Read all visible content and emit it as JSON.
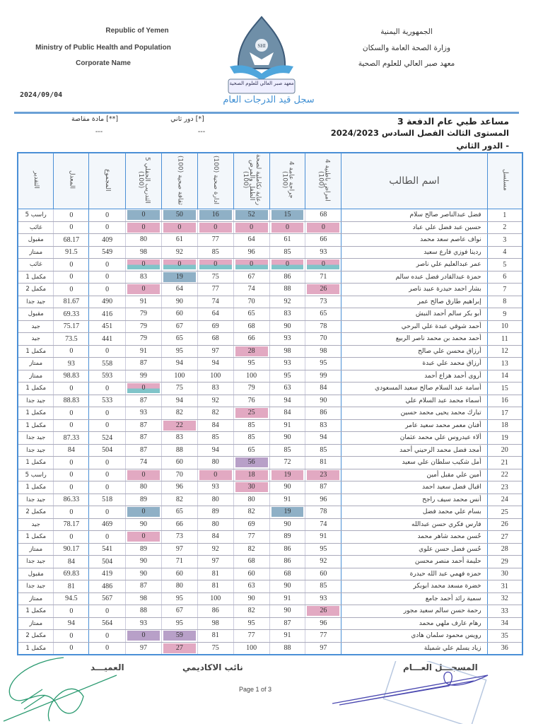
{
  "header": {
    "en": [
      "Republic of Yemen",
      "Ministry of Public Health and Population",
      "Corporate Name"
    ],
    "ar": [
      "الجمهورية اليمنية",
      "وزارة الصحة العامة والسكان",
      "معهد صبر العالي للعلوم الصحية"
    ],
    "logo_text": "SHI",
    "logo_caption": "معهد صبر العالي للعلوم الصحية",
    "date": "2024/09/04",
    "title": "سجل قيد الدرجات العام"
  },
  "program": {
    "name": "مساعد طبي عام الدفعة 3",
    "level": "المستوى الثالث  الفصل السادس  2024/2023",
    "round": "-  الدور الثاني",
    "legend": [
      {
        "key": "[*] دور ثاني",
        "val": "---"
      },
      {
        "key": "[**] مادة مقاصة",
        "val": "---"
      }
    ]
  },
  "columns": {
    "grade": "التقدير",
    "avg": "المعدل",
    "total": "المجموع",
    "subjects": [
      "التدريب الحقلي 5 (100)",
      "ثقافة صحية (100)",
      "ادارة صحية (100)",
      "رعاية تكاملية لصحة الطفل والمرض (100)",
      "جراحة عامة 4 (100)",
      "امراض باطنية 4 (100)"
    ],
    "name": "اسم الطالب",
    "serial": "مسلسل"
  },
  "highlight_colors": {
    "p": "#e2a9c2",
    "b": "#8fb0c6",
    "m": "#80c4c9",
    "u": "#b8a0c8"
  },
  "rows": [
    {
      "n": "1",
      "name": "فضل عبدالناصر صالح سلام",
      "s": [
        "0",
        "50",
        "16",
        "52",
        "15",
        "68"
      ],
      "h": "bbbbb-",
      "t": "0",
      "a": "0",
      "g": "راسب 5"
    },
    {
      "n": "2",
      "name": "حسين عبد فضل علي عباد",
      "s": [
        "0",
        "0",
        "0",
        "0",
        "0",
        "0"
      ],
      "h": "pppppp",
      "t": "0",
      "a": "0",
      "g": "غائب"
    },
    {
      "n": "3",
      "name": "نواف عاصم سعد محمد",
      "s": [
        "80",
        "61",
        "77",
        "64",
        "61",
        "66"
      ],
      "h": "------",
      "t": "409",
      "a": "68.17",
      "g": "مقبول"
    },
    {
      "n": "4",
      "name": "ردينا فوزي فارع سعيد",
      "s": [
        "98",
        "92",
        "85",
        "96",
        "85",
        "93"
      ],
      "h": "------",
      "t": "549",
      "a": "91.5",
      "g": "ممتاز"
    },
    {
      "n": "5",
      "name": "عمر عبدالعليم علي ناصر",
      "s": [
        "0",
        "0",
        "0",
        "0",
        "0",
        "0"
      ],
      "h": "mmmmmm",
      "t": "0",
      "a": "0",
      "g": "غائب"
    },
    {
      "n": "6",
      "name": "حمزة عبدالقادر فضل عبده سالم",
      "s": [
        "83",
        "19",
        "75",
        "67",
        "86",
        "71"
      ],
      "h": "-b----",
      "t": "0",
      "a": "0",
      "g": "مكمل 1"
    },
    {
      "n": "7",
      "name": "بشار احمد حيدرة عبيد ناصر",
      "s": [
        "0",
        "64",
        "77",
        "74",
        "88",
        "26"
      ],
      "h": "p----p",
      "t": "0",
      "a": "0",
      "g": "مكمل 2"
    },
    {
      "n": "8",
      "name": "إبراهيم طارق صالح عمر",
      "s": [
        "91",
        "90",
        "74",
        "70",
        "92",
        "73"
      ],
      "h": "------",
      "t": "490",
      "a": "81.67",
      "g": "جيد جدا"
    },
    {
      "n": "9",
      "name": "أبو بكر سالم أحمد النبش",
      "s": [
        "79",
        "60",
        "64",
        "65",
        "83",
        "65"
      ],
      "h": "------",
      "t": "416",
      "a": "69.33",
      "g": "مقبول"
    },
    {
      "n": "10",
      "name": "أحمد شوقي عبدة علي البرحي",
      "s": [
        "79",
        "67",
        "69",
        "68",
        "90",
        "78"
      ],
      "h": "------",
      "t": "451",
      "a": "75.17",
      "g": "جيد"
    },
    {
      "n": "11",
      "name": "أحمد محمد بن محمد ناصر الربيع",
      "s": [
        "79",
        "65",
        "68",
        "66",
        "93",
        "70"
      ],
      "h": "------",
      "t": "441",
      "a": "73.5",
      "g": "جيد"
    },
    {
      "n": "12",
      "name": "أرزاق محسن علي صالح",
      "s": [
        "91",
        "95",
        "97",
        "28",
        "98",
        "98"
      ],
      "h": "---p--",
      "t": "0",
      "a": "0",
      "g": "مكمل 1"
    },
    {
      "n": "13",
      "name": "أرزاق محمد علي عبدة",
      "s": [
        "87",
        "94",
        "94",
        "95",
        "93",
        "95"
      ],
      "h": "------",
      "t": "558",
      "a": "93",
      "g": "ممتاز"
    },
    {
      "n": "14",
      "name": "أروى أحمد هزاع أحمد",
      "s": [
        "99",
        "100",
        "100",
        "100",
        "95",
        "99"
      ],
      "h": "------",
      "t": "593",
      "a": "98.83",
      "g": "ممتاز"
    },
    {
      "n": "15",
      "name": "أسامة عبد السلام صالح سعيد المسعودي",
      "s": [
        "0",
        "75",
        "83",
        "79",
        "63",
        "84"
      ],
      "h": "m-----",
      "t": "0",
      "a": "0",
      "g": "مكمل 1"
    },
    {
      "n": "16",
      "name": "أسماء محمد عبد السلام علي",
      "s": [
        "87",
        "94",
        "92",
        "76",
        "94",
        "90"
      ],
      "h": "------",
      "t": "533",
      "a": "88.83",
      "g": "جيد جدا"
    },
    {
      "n": "17",
      "name": "تبارك محمد يحيى محمد حسين",
      "s": [
        "93",
        "82",
        "82",
        "25",
        "84",
        "86"
      ],
      "h": "---p--",
      "t": "0",
      "a": "0",
      "g": "مكمل 1"
    },
    {
      "n": "18",
      "name": "أفنان معمر محمد سعيد عامر",
      "s": [
        "87",
        "22",
        "84",
        "85",
        "91",
        "83"
      ],
      "h": "-p----",
      "t": "0",
      "a": "0",
      "g": "مكمل 1"
    },
    {
      "n": "19",
      "name": "ألاء عيدروس علي محمد عثمان",
      "s": [
        "87",
        "83",
        "85",
        "85",
        "90",
        "94"
      ],
      "h": "------",
      "t": "524",
      "a": "87.33",
      "g": "جيد جدا"
    },
    {
      "n": "20",
      "name": "أمجد فضل محمد الرحيني أحمد",
      "s": [
        "87",
        "88",
        "94",
        "65",
        "85",
        "85"
      ],
      "h": "------",
      "t": "504",
      "a": "84",
      "g": "جيد جدا"
    },
    {
      "n": "21",
      "name": "أمل شكيب سلطان علي سعيد",
      "s": [
        "74",
        "60",
        "80",
        "56",
        "72",
        "81"
      ],
      "h": "---u--",
      "t": "0",
      "a": "0",
      "g": "مكمل 1"
    },
    {
      "n": "22",
      "name": "أمين علي مقبل أمين",
      "s": [
        "0",
        "70",
        "0",
        "18",
        "19",
        "23"
      ],
      "h": "p-pppp",
      "t": "0",
      "a": "0",
      "g": "راسب 5"
    },
    {
      "n": "23",
      "name": "اقبال فضل سعيد احمد",
      "s": [
        "80",
        "96",
        "93",
        "30",
        "90",
        "87"
      ],
      "h": "---p--",
      "t": "0",
      "a": "0",
      "g": "مكمل 1"
    },
    {
      "n": "24",
      "name": "أنس محمد سيف راجح",
      "s": [
        "89",
        "82",
        "80",
        "80",
        "91",
        "96"
      ],
      "h": "------",
      "t": "518",
      "a": "86.33",
      "g": "جيد جدا"
    },
    {
      "n": "25",
      "name": "بسام علي محمد فضل",
      "s": [
        "0",
        "65",
        "89",
        "82",
        "19",
        "78"
      ],
      "h": "b---b-",
      "t": "0",
      "a": "0",
      "g": "مكمل 2"
    },
    {
      "n": "26",
      "name": "فارس فكري حسن عبدالله",
      "s": [
        "90",
        "66",
        "80",
        "69",
        "90",
        "74"
      ],
      "h": "------",
      "t": "469",
      "a": "78.17",
      "g": "جيد"
    },
    {
      "n": "27",
      "name": "حُسن محمد شاهر محمد",
      "s": [
        "0",
        "73",
        "84",
        "77",
        "89",
        "91"
      ],
      "h": "p-----",
      "t": "0",
      "a": "0",
      "g": "مكمل 1"
    },
    {
      "n": "28",
      "name": "حُسن فضل حسن علوي",
      "s": [
        "89",
        "97",
        "92",
        "82",
        "86",
        "95"
      ],
      "h": "------",
      "t": "541",
      "a": "90.17",
      "g": "ممتاز"
    },
    {
      "n": "29",
      "name": "حليمة أحمد منصر محسن",
      "s": [
        "90",
        "71",
        "97",
        "68",
        "86",
        "92"
      ],
      "h": "------",
      "t": "504",
      "a": "84",
      "g": "جيد جدا"
    },
    {
      "n": "30",
      "name": "حمزه فهمي عبد الله حيدرة",
      "s": [
        "90",
        "60",
        "81",
        "60",
        "68",
        "60"
      ],
      "h": "------",
      "t": "419",
      "a": "69.83",
      "g": "مقبول"
    },
    {
      "n": "31",
      "name": "خضرة مسعد محمد ابوبكر",
      "s": [
        "87",
        "80",
        "81",
        "63",
        "90",
        "85"
      ],
      "h": "------",
      "t": "486",
      "a": "81",
      "g": "جيد جدا"
    },
    {
      "n": "32",
      "name": "سمية رائد أحمد جامع",
      "s": [
        "98",
        "95",
        "100",
        "90",
        "91",
        "93"
      ],
      "h": "------",
      "t": "567",
      "a": "94.5",
      "g": "ممتاز"
    },
    {
      "n": "33",
      "name": "رحمة حسن سالم سعيد مجور",
      "s": [
        "88",
        "67",
        "86",
        "82",
        "90",
        "26"
      ],
      "h": "-----p",
      "t": "0",
      "a": "0",
      "g": "مكمل 1"
    },
    {
      "n": "34",
      "name": "رهام عارف ملهي محمد",
      "s": [
        "93",
        "95",
        "98",
        "95",
        "87",
        "96"
      ],
      "h": "------",
      "t": "564",
      "a": "94",
      "g": "ممتاز"
    },
    {
      "n": "35",
      "name": "رويس محمود سلمان هادي",
      "s": [
        "0",
        "59",
        "81",
        "77",
        "91",
        "77"
      ],
      "h": "uu----",
      "t": "0",
      "a": "0",
      "g": "مكمل 2"
    },
    {
      "n": "36",
      "name": "زياد يسلم علي شميلة",
      "s": [
        "97",
        "27",
        "75",
        "100",
        "88",
        "97"
      ],
      "h": "-p----",
      "t": "0",
      "a": "0",
      "g": "مكمل 1"
    }
  ],
  "footer": {
    "dean": "العميـــد",
    "vice": "نائب الاكاديمي",
    "registrar": "المسجـــل العـــام",
    "page": "Page 1 of 3",
    "signature_text": "١١/١٧"
  }
}
